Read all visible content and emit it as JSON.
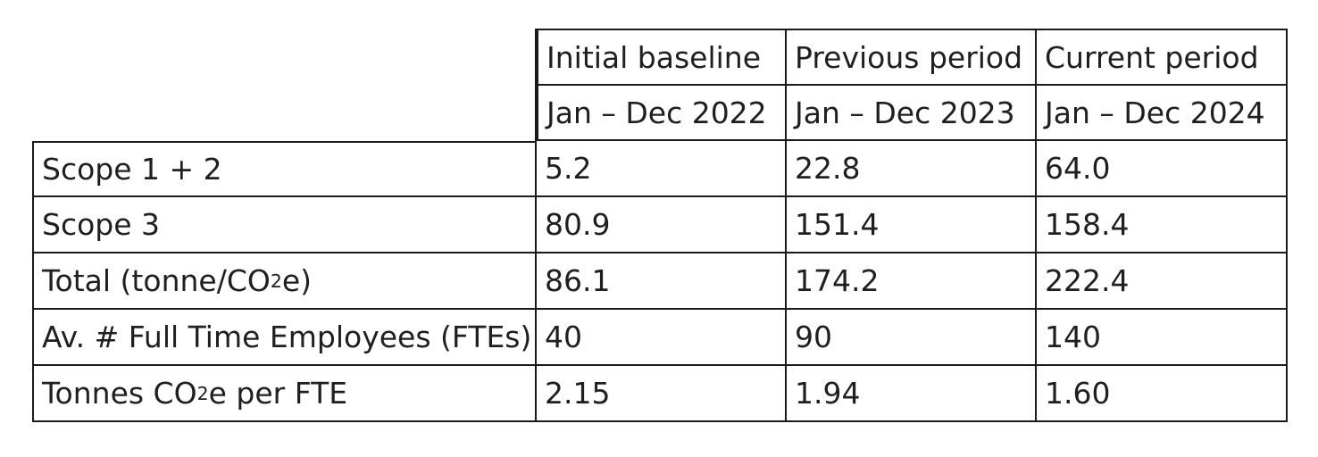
{
  "table": {
    "columns": [
      {
        "header": "Initial baseline",
        "period": "Jan – Dec 2022"
      },
      {
        "header": "Previous period",
        "period": "Jan – Dec 2023"
      },
      {
        "header": "Current period",
        "period": "Jan – Dec 2024"
      }
    ],
    "rows": [
      {
        "label": "Scope 1 + 2",
        "values": [
          "5.2",
          "22.8",
          "64.0"
        ]
      },
      {
        "label": "Scope 3",
        "values": [
          "80.9",
          "151.4",
          "158.4"
        ]
      },
      {
        "label_pre": "Total (tonne/CO",
        "label_sub": "2",
        "label_post": "e)",
        "values": [
          "86.1",
          "174.2",
          "222.4"
        ]
      },
      {
        "label": "Av. # Full Time Employees (FTEs)",
        "values": [
          "40",
          "90",
          "140"
        ]
      },
      {
        "label_pre": "Tonnes CO",
        "label_sub": "2",
        "label_post": "e per FTE",
        "values": [
          "2.15",
          "1.94",
          "1.60"
        ]
      }
    ]
  }
}
